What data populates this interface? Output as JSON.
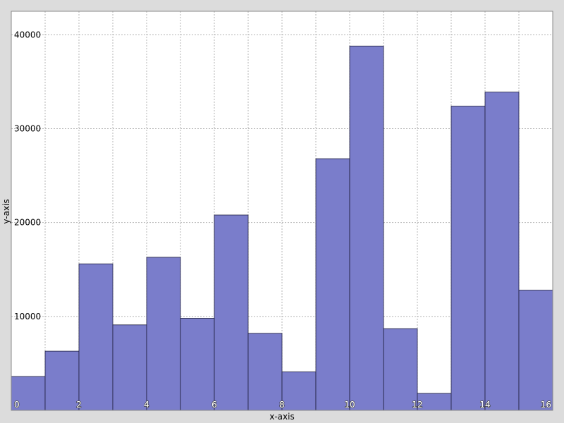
{
  "chart_data": {
    "type": "bar",
    "xlabel": "x-axis",
    "ylabel": "y-axis",
    "xlim": [
      0,
      16
    ],
    "ylim": [
      0,
      42500
    ],
    "x_ticks": [
      0,
      2,
      4,
      6,
      8,
      10,
      12,
      14,
      16
    ],
    "y_ticks": [
      10000,
      20000,
      30000,
      40000
    ],
    "bins": [
      {
        "x0": 0,
        "x1": 1,
        "value": 3600
      },
      {
        "x0": 1,
        "x1": 2,
        "value": 6300
      },
      {
        "x0": 2,
        "x1": 3,
        "value": 15600
      },
      {
        "x0": 3,
        "x1": 4,
        "value": 9100
      },
      {
        "x0": 4,
        "x1": 5,
        "value": 16300
      },
      {
        "x0": 5,
        "x1": 6,
        "value": 9800
      },
      {
        "x0": 6,
        "x1": 7,
        "value": 20800
      },
      {
        "x0": 7,
        "x1": 8,
        "value": 8200
      },
      {
        "x0": 8,
        "x1": 9,
        "value": 4100
      },
      {
        "x0": 9,
        "x1": 10,
        "value": 26800
      },
      {
        "x0": 10,
        "x1": 11,
        "value": 38800
      },
      {
        "x0": 11,
        "x1": 12,
        "value": 8700
      },
      {
        "x0": 12,
        "x1": 13,
        "value": 1800
      },
      {
        "x0": 13,
        "x1": 14,
        "value": 32400
      },
      {
        "x0": 14,
        "x1": 15,
        "value": 33900
      },
      {
        "x0": 15,
        "x1": 16,
        "value": 12800
      }
    ],
    "grid": true,
    "bar_color": "#7a7dcb",
    "bar_edge_color": "#1e1e3c",
    "plot_background": "#ffffff",
    "background": "#dcdcdc"
  }
}
